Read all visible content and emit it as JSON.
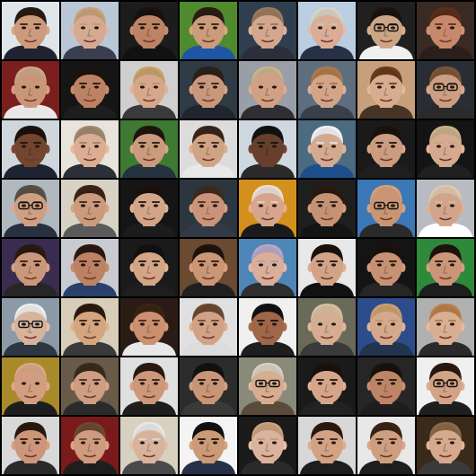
{
  "grid": {
    "rows": 8,
    "columns": 8,
    "tiles": [
      {
        "bg": "#dfe6ea",
        "skin": "#d9a585",
        "hair": "#2a1b12",
        "shirt": "#1f2330",
        "glasses": false
      },
      {
        "bg": "#b9c7d6",
        "skin": "#e4b59c",
        "hair": "#c9a27a",
        "shirt": "#3a3e4f",
        "glasses": false
      },
      {
        "bg": "#1c1c1c",
        "skin": "#c98c6c",
        "hair": "#1a120c",
        "shirt": "#111111",
        "glasses": false
      },
      {
        "bg": "#4f8a2f",
        "skin": "#d9a583",
        "hair": "#2b1d14",
        "shirt": "#1f56a3",
        "glasses": false
      },
      {
        "bg": "#2f3f4f",
        "skin": "#e2b197",
        "hair": "#9a7a5a",
        "shirt": "#2c2f3b",
        "glasses": false
      },
      {
        "bg": "#b9cfe1",
        "skin": "#e8b8a0",
        "hair": "#d8d2c8",
        "shirt": "#263047",
        "glasses": false
      },
      {
        "bg": "#202020",
        "skin": "#d9b08f",
        "hair": "#1b130e",
        "shirt": "#f0f0f0",
        "glasses": true
      },
      {
        "bg": "#3a2a24",
        "skin": "#d39272",
        "hair": "#5a2e1a",
        "shirt": "#2a1f1a",
        "glasses": false
      },
      {
        "bg": "#7a1e1e",
        "skin": "#d7a081",
        "hair": "#caa78a",
        "shirt": "#e8e8e8",
        "glasses": false
      },
      {
        "bg": "#151515",
        "skin": "#c98b6b",
        "hair": "#1c140e",
        "shirt": "#1e1e1e",
        "glasses": false
      },
      {
        "bg": "#cfcfcf",
        "skin": "#e3b394",
        "hair": "#c7a26a",
        "shirt": "#3a3a3a",
        "glasses": false
      },
      {
        "bg": "#2f3a45",
        "skin": "#d6a184",
        "hair": "#2b2118",
        "shirt": "#20242c",
        "glasses": false
      },
      {
        "bg": "#9a9ea6",
        "skin": "#e0ab8e",
        "hair": "#cbb38d",
        "shirt": "#2e2e33",
        "glasses": false
      },
      {
        "bg": "#5e6e7e",
        "skin": "#e0b092",
        "hair": "#b07a4c",
        "shirt": "#38404c",
        "glasses": false
      },
      {
        "bg": "#c5a07a",
        "skin": "#e6b898",
        "hair": "#6a3a1c",
        "shirt": "#463426",
        "glasses": false
      },
      {
        "bg": "#2a2e34",
        "skin": "#d9a98c",
        "hair": "#7a5638",
        "shirt": "#2a2a2a",
        "glasses": true
      },
      {
        "bg": "#cfd6dc",
        "skin": "#7a4a32",
        "hair": "#1a120c",
        "shirt": "#1d2330",
        "glasses": false
      },
      {
        "bg": "#e8e4dc",
        "skin": "#e9b89d",
        "hair": "#a08870",
        "shirt": "#2b2f38",
        "glasses": false
      },
      {
        "bg": "#3f7a32",
        "skin": "#d7a685",
        "hair": "#1f140e",
        "shirt": "#24333f",
        "glasses": false
      },
      {
        "bg": "#dcdcdc",
        "skin": "#dfae8e",
        "hair": "#3a2518",
        "shirt": "#e8e8e8",
        "glasses": false
      },
      {
        "bg": "#cfd8df",
        "skin": "#6e4330",
        "hair": "#121212",
        "shirt": "#2a2a2a",
        "glasses": false
      },
      {
        "bg": "#4d6b80",
        "skin": "#e1b598",
        "hair": "#f2f2f2",
        "shirt": "#1d4f8c",
        "glasses": false
      },
      {
        "bg": "#1a1a1a",
        "skin": "#d8a688",
        "hair": "#1a120c",
        "shirt": "#1e1e1e",
        "glasses": false
      },
      {
        "bg": "#141414",
        "skin": "#e3b59a",
        "hair": "#c8b08a",
        "shirt": "#202020",
        "glasses": false
      },
      {
        "bg": "#b0b8c0",
        "skin": "#dca98c",
        "hair": "#5a5048",
        "shirt": "#263040",
        "glasses": true
      },
      {
        "bg": "#d8d2c6",
        "skin": "#d9a485",
        "hair": "#3a2415",
        "shirt": "#5a5a5a",
        "glasses": false
      },
      {
        "bg": "#151515",
        "skin": "#e0b092",
        "hair": "#1b120d",
        "shirt": "#1c1c1c",
        "glasses": false
      },
      {
        "bg": "#2c3640",
        "skin": "#d89e82",
        "hair": "#3c2c20",
        "shirt": "#323a46",
        "glasses": false
      },
      {
        "bg": "#d4901c",
        "skin": "#e4b094",
        "hair": "#e8e0d6",
        "shirt": "#1a1a1a",
        "glasses": false
      },
      {
        "bg": "#1e1e1e",
        "skin": "#d29c7c",
        "hair": "#2a1a10",
        "shirt": "#141414",
        "glasses": false
      },
      {
        "bg": "#3a78b8",
        "skin": "#d6a07c",
        "hair": "#d6a07c",
        "shirt": "#2a2a2a",
        "glasses": true
      },
      {
        "bg": "#b8bcc2",
        "skin": "#dfb094",
        "hair": "#e0c8b0",
        "shirt": "#ffffff",
        "glasses": false
      },
      {
        "bg": "#3a2c50",
        "skin": "#d8a184",
        "hair": "#2a1a10",
        "shirt": "#262626",
        "glasses": false
      },
      {
        "bg": "#c8ccd0",
        "skin": "#c98b6b",
        "hair": "#2a1a10",
        "shirt": "#2a3f6a",
        "glasses": false
      },
      {
        "bg": "#1a1a1a",
        "skin": "#e1b08f",
        "hair": "#111111",
        "shirt": "#1e1e1e",
        "glasses": false
      },
      {
        "bg": "#6a4a30",
        "skin": "#d7a07e",
        "hair": "#1e140d",
        "shirt": "#202020",
        "glasses": false
      },
      {
        "bg": "#4f86b8",
        "skin": "#e7b9a4",
        "hair": "#b8a8c8",
        "shirt": "#2e2e2e",
        "glasses": false
      },
      {
        "bg": "#e8e8e8",
        "skin": "#e0ae90",
        "hair": "#1a120c",
        "shirt": "#111111",
        "glasses": false
      },
      {
        "bg": "#141414",
        "skin": "#d49c7c",
        "hair": "#1a120c",
        "shirt": "#262626",
        "glasses": false
      },
      {
        "bg": "#2e8a3a",
        "skin": "#d8a080",
        "hair": "#1e140e",
        "shirt": "#1e1e1e",
        "glasses": false
      },
      {
        "bg": "#8c9aa8",
        "skin": "#e6bfa6",
        "hair": "#eeeeee",
        "shirt": "#2e3642",
        "glasses": true
      },
      {
        "bg": "#d8cdb8",
        "skin": "#e2b087",
        "hair": "#2a1a10",
        "shirt": "#3a3a3a",
        "glasses": false
      },
      {
        "bg": "#2a1c14",
        "skin": "#d89a76",
        "hair": "#3a2414",
        "shirt": "#e8e8e8",
        "glasses": false
      },
      {
        "bg": "#e0e0e0",
        "skin": "#dfad8e",
        "hair": "#6a4a32",
        "shirt": "#dcdcdc",
        "glasses": false
      },
      {
        "bg": "#f0f0f0",
        "skin": "#a86e4e",
        "hair": "#111111",
        "shirt": "#1e1e1e",
        "glasses": false
      },
      {
        "bg": "#6a6a5a",
        "skin": "#e4b89a",
        "hair": "#d8c0a0",
        "shirt": "#3a3a3a",
        "glasses": false
      },
      {
        "bg": "#2c4c8c",
        "skin": "#e2b396",
        "hair": "#c8a070",
        "shirt": "#22344e",
        "glasses": false
      },
      {
        "bg": "#b0b0b0",
        "skin": "#e8b99c",
        "hair": "#b8804a",
        "shirt": "#2a2a2a",
        "glasses": false
      },
      {
        "bg": "#a88a2a",
        "skin": "#e1a888",
        "hair": "#d9a888",
        "shirt": "#1e1e1e",
        "glasses": false
      },
      {
        "bg": "#6a5a4a",
        "skin": "#dca78a",
        "hair": "#3a2a1c",
        "shirt": "#2a2a2a",
        "glasses": false
      },
      {
        "bg": "#e0e0e0",
        "skin": "#d9a182",
        "hair": "#2a1a10",
        "shirt": "#1e1e1e",
        "glasses": false
      },
      {
        "bg": "#2c2c2c",
        "skin": "#d69f7f",
        "hair": "#121212",
        "shirt": "#3a3a3a",
        "glasses": false
      },
      {
        "bg": "#8a8a7a",
        "skin": "#e4b89a",
        "hair": "#d8d0c0",
        "shirt": "#5a4a3a",
        "glasses": true
      },
      {
        "bg": "#1a1a1a",
        "skin": "#e2b092",
        "hair": "#1a120c",
        "shirt": "#222222",
        "glasses": false
      },
      {
        "bg": "#262626",
        "skin": "#c98e6c",
        "hair": "#1a120c",
        "shirt": "#1e1e1e",
        "glasses": false
      },
      {
        "bg": "#f0f0f0",
        "skin": "#e0ae90",
        "hair": "#2a1a10",
        "shirt": "#1e1e1e",
        "glasses": true
      },
      {
        "bg": "#d8d8d8",
        "skin": "#d8a082",
        "hair": "#2a1a10",
        "shirt": "#2a2a2a",
        "glasses": false
      },
      {
        "bg": "#7a1a1a",
        "skin": "#dba586",
        "hair": "#6a4a30",
        "shirt": "#1e1e1e",
        "glasses": false
      },
      {
        "bg": "#d8d0c0",
        "skin": "#e6bfa6",
        "hair": "#e8e8e8",
        "shirt": "#4a4a4a",
        "glasses": false
      },
      {
        "bg": "#f4f4f4",
        "skin": "#d8a47e",
        "hair": "#111111",
        "shirt": "#263048",
        "glasses": false
      },
      {
        "bg": "#1a1a1a",
        "skin": "#e8bfa8",
        "hair": "#caa07c",
        "shirt": "#2a2a2a",
        "glasses": false
      },
      {
        "bg": "#d8d8d8",
        "skin": "#e0ad8e",
        "hair": "#2a1a10",
        "shirt": "#1e1e1e",
        "glasses": false
      },
      {
        "bg": "#e8e8e8",
        "skin": "#dba889",
        "hair": "#3a2414",
        "shirt": "#1e1e1e",
        "glasses": false
      },
      {
        "bg": "#3a2a1a",
        "skin": "#e2b497",
        "hair": "#8a6a48",
        "shirt": "#3a3a3a",
        "glasses": false
      }
    ]
  }
}
